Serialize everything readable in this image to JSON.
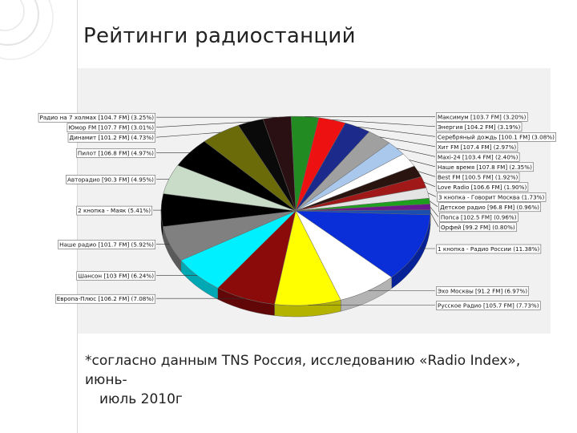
{
  "page": {
    "title": "Рейтинги радиостанций",
    "footnote_line1": "*согласно данным TNS Россия, исследованию «Radio Index», июнь-",
    "footnote_line2": "июль 2010г"
  },
  "chart_data": {
    "type": "pie",
    "title": "",
    "legend": "none",
    "slices": [
      {
        "label": "Максимум [103.7 FM] (3.20%)",
        "value": 3.2,
        "color": "#228b22"
      },
      {
        "label": "Энергия [104.2 FM] (3.19%)",
        "value": 3.19,
        "color": "#ee1111"
      },
      {
        "label": "Серебряный дождь [100.1 FM] (3.08%)",
        "value": 3.08,
        "color": "#1c2a8c"
      },
      {
        "label": "Хит FM [107.4 FM] (2.97%)",
        "value": 2.97,
        "color": "#a0a0a0"
      },
      {
        "label": "Maxi-24 [103.4 FM] (2.40%)",
        "value": 2.4,
        "color": "#a9c8ec"
      },
      {
        "label": "Наше время [107.8 FM] (2.35%)",
        "value": 2.35,
        "color": "#ffffff"
      },
      {
        "label": "Best FM [100.5 FM] (1.92%)",
        "value": 1.92,
        "color": "#2a1410"
      },
      {
        "label": "Love Radio [106.6 FM] (1.90%)",
        "value": 1.9,
        "color": "#a01818"
      },
      {
        "label": "3 кнопка - Говорит Москва (1.73%)",
        "value": 1.73,
        "color": "#e4e4e4"
      },
      {
        "label": "Детское радио [96.8 FM] (0.96%)",
        "value": 0.96,
        "color": "#1ea01e"
      },
      {
        "label": "Попса [102.5 FM] (0.96%)",
        "value": 0.96,
        "color": "#6a1a8a"
      },
      {
        "label": "Орфей [99.2 FM] (0.80%)",
        "value": 0.8,
        "color": "#1a4fb0"
      },
      {
        "label": "1 кнопка - Радио России (11.38%)",
        "value": 11.38,
        "color": "#0a2fd8"
      },
      {
        "label": "Эхо Москвы [91.2 FM] (6.97%)",
        "value": 6.97,
        "color": "#ffffff"
      },
      {
        "label": "Русское Радио [105.7 FM] (7.73%)",
        "value": 7.73,
        "color": "#ffff00"
      },
      {
        "label": "Европа-Плюс [106.2 FM] (7.08%)",
        "value": 7.08,
        "color": "#8b0a0a"
      },
      {
        "label": "Шансон [103 FM] (6.24%)",
        "value": 6.24,
        "color": "#00f0ff"
      },
      {
        "label": "Наше радио [101.7 FM] (5.92%)",
        "value": 5.92,
        "color": "#808080"
      },
      {
        "label": "2 кнопка - Маяк (5.41%)",
        "value": 5.41,
        "color": "#000000"
      },
      {
        "label": "Авторадио [90.3 FM] (4.95%)",
        "value": 4.95,
        "color": "#c8dcc8"
      },
      {
        "label": "Пилот [106.8 FM] (4.97%)",
        "value": 4.97,
        "color": "#000000"
      },
      {
        "label": "Динамит [101.2 FM] (4.73%)",
        "value": 4.73,
        "color": "#6b6b0a"
      },
      {
        "label": "Юмор FM [107.7 FM] (3.01%)",
        "value": 3.01,
        "color": "#0a0a0a"
      },
      {
        "label": "Радио на 7 холмах [104.7 FM] (3.25%)",
        "value": 3.25,
        "color": "#2a1012"
      }
    ]
  }
}
